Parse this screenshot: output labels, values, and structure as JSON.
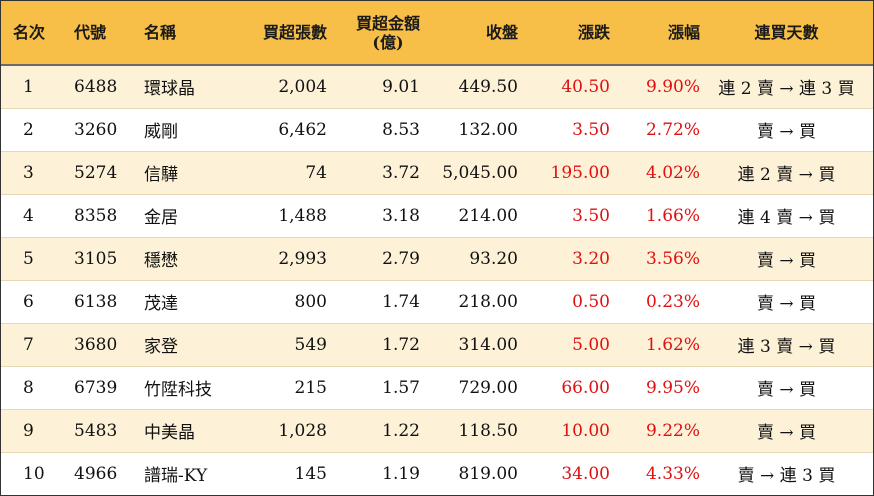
{
  "colors": {
    "header_bg": "#f7bf47",
    "row_alt": "#fdf1d7",
    "up": "#e01010"
  },
  "headers": {
    "rank": "名次",
    "code": "代號",
    "name": "名稱",
    "lots": "買超張數",
    "amount_line1": "買超金額",
    "amount_line2": "(億)",
    "close": "收盤",
    "change": "漲跌",
    "pct": "漲幅",
    "streak": "連買天數"
  },
  "rows": [
    {
      "rank": "1",
      "code": "6488",
      "name": "環球晶",
      "lots": "2,004",
      "amount": "9.01",
      "close": "449.50",
      "change": "40.50",
      "pct": "9.90%",
      "streak": "連 2 賣 → 連 3 買"
    },
    {
      "rank": "2",
      "code": "3260",
      "name": "威剛",
      "lots": "6,462",
      "amount": "8.53",
      "close": "132.00",
      "change": "3.50",
      "pct": "2.72%",
      "streak": "賣 → 買"
    },
    {
      "rank": "3",
      "code": "5274",
      "name": "信驊",
      "lots": "74",
      "amount": "3.72",
      "close": "5,045.00",
      "change": "195.00",
      "pct": "4.02%",
      "streak": "連 2 賣 → 買"
    },
    {
      "rank": "4",
      "code": "8358",
      "name": "金居",
      "lots": "1,488",
      "amount": "3.18",
      "close": "214.00",
      "change": "3.50",
      "pct": "1.66%",
      "streak": "連 4 賣 → 買"
    },
    {
      "rank": "5",
      "code": "3105",
      "name": "穩懋",
      "lots": "2,993",
      "amount": "2.79",
      "close": "93.20",
      "change": "3.20",
      "pct": "3.56%",
      "streak": "賣 → 買"
    },
    {
      "rank": "6",
      "code": "6138",
      "name": "茂達",
      "lots": "800",
      "amount": "1.74",
      "close": "218.00",
      "change": "0.50",
      "pct": "0.23%",
      "streak": "賣 → 買"
    },
    {
      "rank": "7",
      "code": "3680",
      "name": "家登",
      "lots": "549",
      "amount": "1.72",
      "close": "314.00",
      "change": "5.00",
      "pct": "1.62%",
      "streak": "連 3 賣 → 買"
    },
    {
      "rank": "8",
      "code": "6739",
      "name": "竹陞科技",
      "lots": "215",
      "amount": "1.57",
      "close": "729.00",
      "change": "66.00",
      "pct": "9.95%",
      "streak": "賣 → 買"
    },
    {
      "rank": "9",
      "code": "5483",
      "name": "中美晶",
      "lots": "1,028",
      "amount": "1.22",
      "close": "118.50",
      "change": "10.00",
      "pct": "9.22%",
      "streak": "賣 → 買"
    },
    {
      "rank": "10",
      "code": "4966",
      "name": "譜瑞-KY",
      "lots": "145",
      "amount": "1.19",
      "close": "819.00",
      "change": "34.00",
      "pct": "4.33%",
      "streak": "賣 → 連 3 買"
    }
  ]
}
